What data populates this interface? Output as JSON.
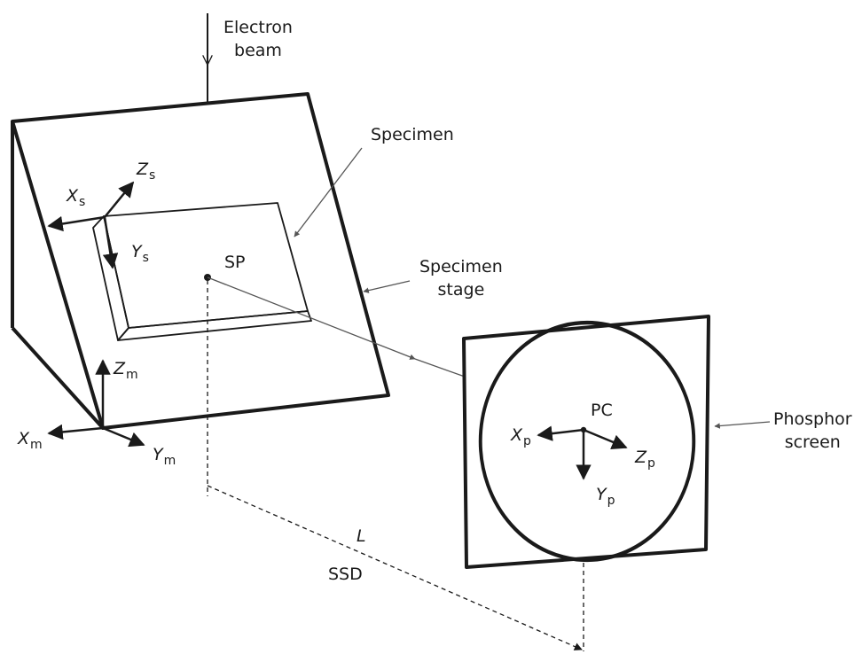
{
  "labels": {
    "electron_beam_line1": "Electron",
    "electron_beam_line2": "beam",
    "specimen": "Specimen",
    "specimen_stage_line1": "Specimen",
    "specimen_stage_line2": "stage",
    "sp": "SP",
    "pc": "PC",
    "phosphor_screen_line1": "Phosphor",
    "phosphor_screen_line2": "screen",
    "distance_L": "L",
    "ssd": "SSD"
  },
  "axes": {
    "specimen": {
      "x": "X",
      "y": "Y",
      "z": "Z",
      "sub": "s"
    },
    "microscope": {
      "x": "X",
      "y": "Y",
      "z": "Z",
      "sub": "m"
    },
    "phosphor": {
      "x": "X",
      "y": "Y",
      "z": "Z",
      "sub": "p"
    }
  },
  "colors": {
    "ink": "#1a1a1a",
    "leader": "#555555",
    "background": "#ffffff"
  }
}
